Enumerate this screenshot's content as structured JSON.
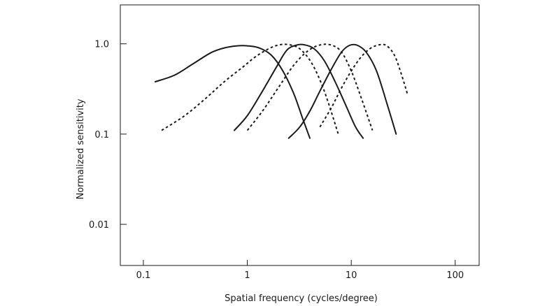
{
  "chart_data": {
    "type": "line",
    "title": "",
    "xlabel": "Spatial frequency (cycles/degree)",
    "ylabel": "Normalized sensitivity",
    "xscale": "log",
    "yscale": "log",
    "xlim": [
      0.06,
      170
    ],
    "ylim": [
      0.0035,
      2.7
    ],
    "xticks": [
      0.1,
      1,
      10,
      100
    ],
    "xtick_labels": [
      "0.1",
      "1",
      "10",
      "100"
    ],
    "yticks": [
      0.01,
      0.1,
      1.0
    ],
    "ytick_labels": [
      "0.01",
      "0.1",
      "1.0"
    ],
    "grid": false,
    "legend": false,
    "series": [
      {
        "style": "solid",
        "x": [
          0.13,
          0.2,
          0.3,
          0.45,
          0.6,
          0.8,
          1.0,
          1.3,
          1.7,
          2.2,
          2.8,
          3.4,
          4.0
        ],
        "y": [
          0.38,
          0.45,
          0.6,
          0.8,
          0.9,
          0.95,
          0.95,
          0.9,
          0.75,
          0.5,
          0.28,
          0.15,
          0.09
        ]
      },
      {
        "style": "dashed",
        "x": [
          0.15,
          0.25,
          0.4,
          0.6,
          0.9,
          1.2,
          1.6,
          2.0,
          2.5,
          3.2,
          4.2,
          5.5,
          7.5
        ],
        "y": [
          0.11,
          0.16,
          0.25,
          0.38,
          0.55,
          0.72,
          0.88,
          0.97,
          0.98,
          0.88,
          0.6,
          0.3,
          0.1
        ]
      },
      {
        "style": "solid",
        "x": [
          0.75,
          1.0,
          1.4,
          1.9,
          2.4,
          3.0,
          3.6,
          4.4,
          5.5,
          7.0,
          9.0,
          11.0,
          13.0
        ],
        "y": [
          0.11,
          0.16,
          0.3,
          0.55,
          0.85,
          0.97,
          0.97,
          0.88,
          0.65,
          0.38,
          0.2,
          0.12,
          0.09
        ]
      },
      {
        "style": "dashed",
        "x": [
          1.0,
          1.4,
          2.0,
          2.8,
          3.8,
          5.0,
          6.4,
          8.0,
          10.0,
          12.5,
          16.0
        ],
        "y": [
          0.11,
          0.18,
          0.33,
          0.58,
          0.83,
          0.97,
          0.97,
          0.82,
          0.5,
          0.25,
          0.11
        ]
      },
      {
        "style": "solid",
        "x": [
          2.5,
          3.2,
          4.0,
          5.0,
          6.3,
          8.0,
          9.6,
          11.5,
          14.0,
          17.5,
          22.0,
          27.0
        ],
        "y": [
          0.09,
          0.12,
          0.18,
          0.3,
          0.5,
          0.8,
          0.96,
          0.96,
          0.8,
          0.5,
          0.22,
          0.1
        ]
      },
      {
        "style": "dashed",
        "x": [
          5.0,
          6.5,
          8.0,
          10.0,
          12.5,
          15.5,
          19.0,
          22.0,
          26.0,
          30.0,
          35.0
        ],
        "y": [
          0.12,
          0.2,
          0.32,
          0.5,
          0.72,
          0.9,
          0.98,
          0.95,
          0.75,
          0.48,
          0.27
        ]
      }
    ]
  }
}
